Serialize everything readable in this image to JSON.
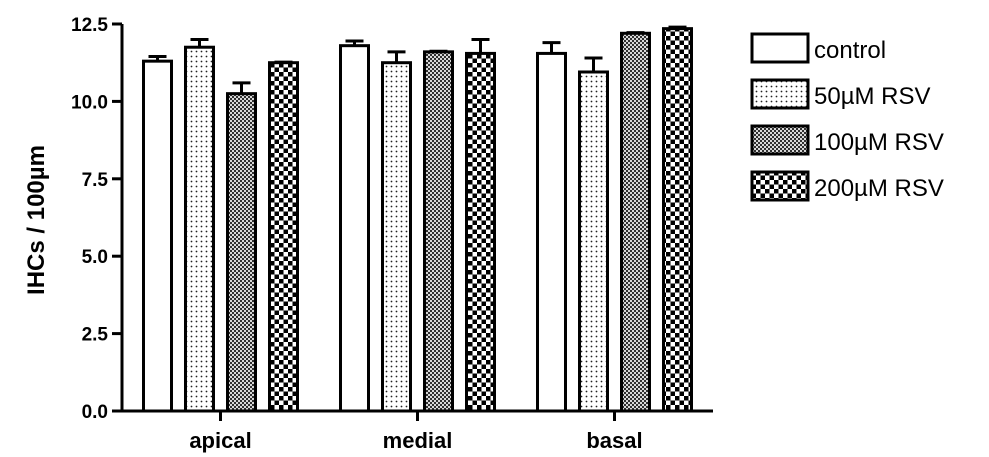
{
  "chart_data": {
    "type": "bar",
    "title": "",
    "xlabel": "",
    "ylabel": "IHCs / 100µm",
    "ylim": [
      0,
      12.5
    ],
    "yticks": [
      0.0,
      2.5,
      5.0,
      7.5,
      10.0,
      12.5
    ],
    "ytick_labels": [
      "0.0",
      "2.5",
      "5.0",
      "7.5",
      "10.0",
      "12.5"
    ],
    "categories": [
      "apical",
      "medial",
      "basal"
    ],
    "grid": false,
    "legend_position": "right",
    "series": [
      {
        "name": "control",
        "values": [
          11.3,
          11.8,
          11.55
        ],
        "errors": [
          0.15,
          0.15,
          0.35
        ],
        "pattern": "white"
      },
      {
        "name": "50µM RSV",
        "values": [
          11.75,
          11.25,
          10.95
        ],
        "errors": [
          0.25,
          0.35,
          0.45
        ],
        "pattern": "dots"
      },
      {
        "name": "100µM RSV",
        "values": [
          10.25,
          11.6,
          12.2
        ],
        "errors": [
          0.35,
          0.02,
          0.02
        ],
        "pattern": "fine-check"
      },
      {
        "name": "200µM RSV",
        "values": [
          11.25,
          11.55,
          12.35
        ],
        "errors": [
          0.02,
          0.45,
          0.05
        ],
        "pattern": "checker"
      }
    ]
  }
}
